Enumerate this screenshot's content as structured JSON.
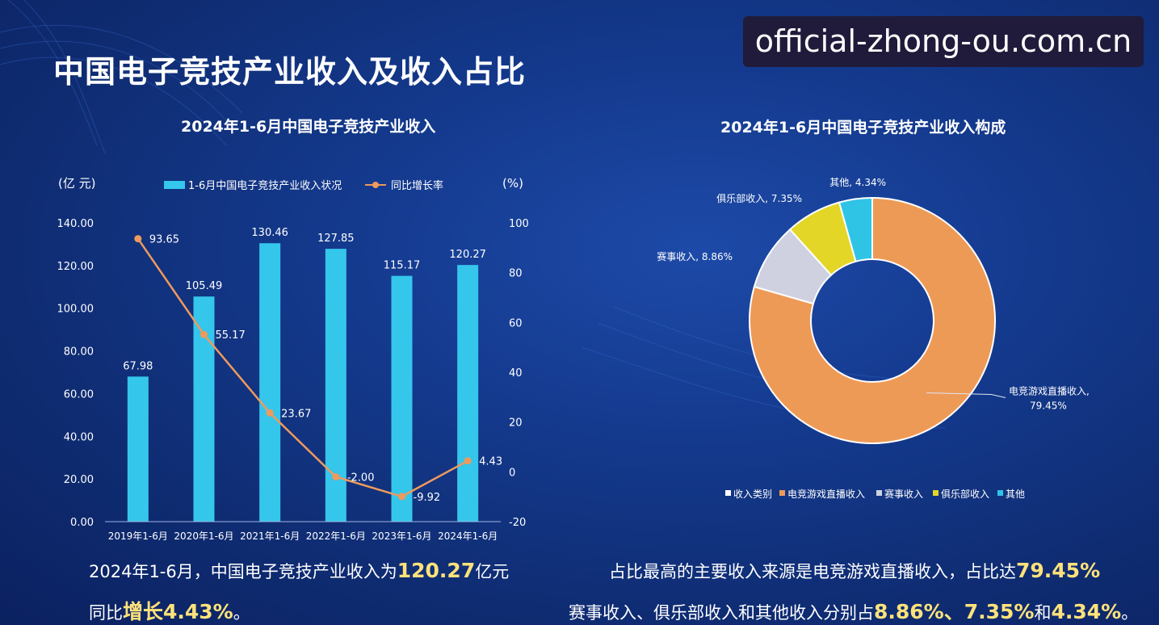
{
  "title": "中国电子竞技产业收入及收入占比",
  "watermark": "official-zhong-ou.com.cn",
  "colors": {
    "bar": "#35c6ec",
    "line": "#ee9a5c",
    "pie": [
      "#ee9a57",
      "#cfd1e0",
      "#e3d627",
      "#2fc4e6"
    ]
  },
  "chart_data": [
    {
      "type": "bar",
      "title": "2024年1-6月中国电子竞技产业收入",
      "categories": [
        "2019年1-6月",
        "2020年1-6月",
        "2021年1-6月",
        "2022年1-6月",
        "2023年1-6月",
        "2024年1-6月"
      ],
      "series": [
        {
          "name": "1-6月中国电子竞技产业收入状况",
          "type": "bar",
          "values": [
            67.98,
            105.49,
            130.46,
            127.85,
            115.17,
            120.27
          ],
          "labels": [
            "67.98",
            "105.49",
            "130.46",
            "127.85",
            "115.17",
            "120.27"
          ],
          "axis": "left"
        },
        {
          "name": "同比增长率",
          "type": "line",
          "values": [
            93.65,
            55.17,
            23.67,
            -2.0,
            -9.92,
            4.43
          ],
          "labels": [
            "93.65",
            "55.17",
            "23.67",
            "-2.00",
            "-9.92",
            "4.43"
          ],
          "axis": "right"
        }
      ],
      "y_left": {
        "label": "(亿 元)",
        "range": [
          0,
          140
        ],
        "ticks": [
          "0.00",
          "20.00",
          "40.00",
          "60.00",
          "80.00",
          "100.00",
          "120.00",
          "140.00"
        ]
      },
      "y_right": {
        "label": "(%)",
        "range": [
          -20,
          100
        ],
        "ticks": [
          "-20",
          "0",
          "20",
          "40",
          "60",
          "80",
          "100"
        ]
      },
      "legend_position": "top",
      "grid": false
    },
    {
      "type": "pie",
      "title": "2024年1-6月中国电子竞技产业收入构成",
      "slices": [
        {
          "name": "电竞游戏直播收入",
          "value": 79.45,
          "label_name": "电竞游戏直播收入,",
          "label_value": "79.45%"
        },
        {
          "name": "赛事收入",
          "value": 8.86,
          "label": "赛事收入, 8.86%"
        },
        {
          "name": "俱乐部收入",
          "value": 7.35,
          "label": "俱乐部收入, 7.35%"
        },
        {
          "name": "其他",
          "value": 4.34,
          "label": "其他, 4.34%"
        }
      ],
      "legend": [
        "收入类别",
        "电竞游戏直播收入",
        "赛事收入",
        "俱乐部收入",
        "其他"
      ],
      "legend_position": "bottom",
      "donut": true
    }
  ],
  "summary": {
    "line1_a": "2024年1-6月，中国电子竞技产业收入为",
    "line1_b": "120.27",
    "line1_c": "亿元",
    "line2_a": "同比",
    "line2_b": "增长4.43%",
    "line2_c": "。",
    "line3_a": "占比最高的主要收入来源是电竞游戏直播收入，占比达",
    "line3_b": "79.45%",
    "line4_a": "赛事收入、俱乐部收入和其他收入分别占",
    "line4_b": "8.86%、7.35%",
    "line4_c": "和",
    "line4_d": "4.34%",
    "line4_e": "。"
  }
}
